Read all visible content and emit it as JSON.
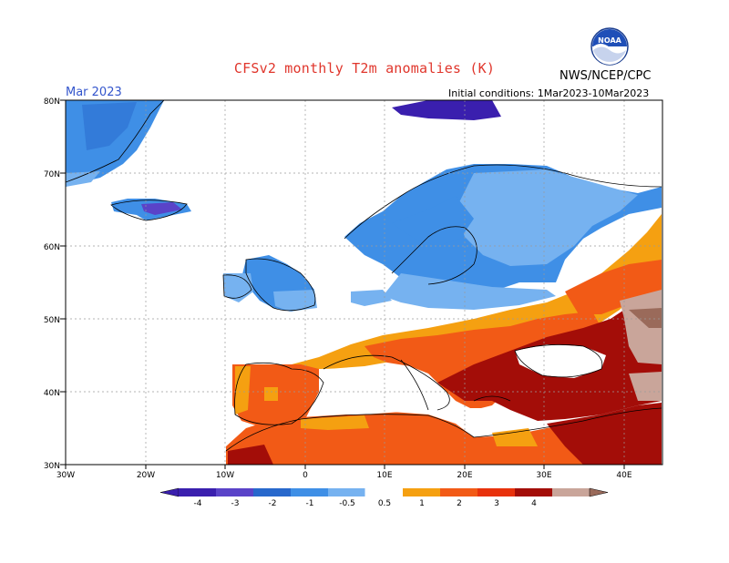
{
  "header": {
    "title": "CFSv2 monthly T2m anomalies (K)",
    "agency": "NWS/NCEP/CPC",
    "period": "Mar 2023",
    "initial_conditions": "Initial conditions: 1Mar2023-10Mar2023",
    "logo_text": "NOAA"
  },
  "axes": {
    "lat_labels": [
      "80N",
      "70N",
      "60N",
      "50N",
      "40N",
      "30N"
    ],
    "lon_labels": [
      "30W",
      "20W",
      "10W",
      "0",
      "10E",
      "20E",
      "30E",
      "40E"
    ]
  },
  "colorbar": {
    "labels": [
      "-4",
      "-3",
      "-2",
      "-1",
      "-0.5",
      "0.5",
      "1",
      "2",
      "3",
      "4"
    ],
    "colors": [
      "#3a1fae",
      "#5a43c8",
      "#2868cc",
      "#3f8fe6",
      "#76b2f0",
      "#ffffff",
      "#f5a011",
      "#f25a16",
      "#e8320c",
      "#a30d08",
      "#c9a59a",
      "#9a6a5a"
    ]
  },
  "colors": {
    "title": "#e0362c",
    "period": "#3355cc",
    "gridline": "#9a9a9a"
  }
}
